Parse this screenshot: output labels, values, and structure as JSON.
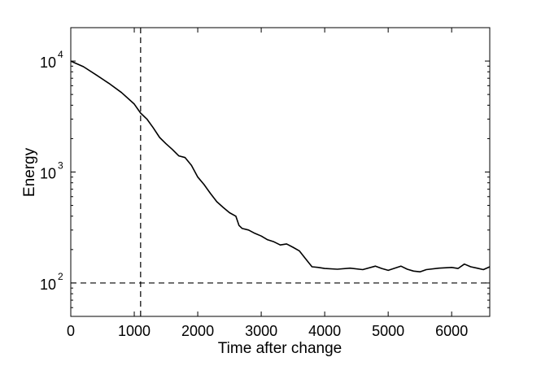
{
  "chart_data": {
    "type": "line",
    "title": "",
    "xlabel": "Time after change",
    "ylabel": "Energy",
    "xlim": [
      0,
      6600
    ],
    "ylim": [
      50,
      20000
    ],
    "yscale": "log",
    "grid": false,
    "x_ticks": [
      0,
      1000,
      2000,
      3000,
      4000,
      5000,
      6000
    ],
    "x_tick_labels": [
      "0",
      "1000",
      "2000",
      "3000",
      "4000",
      "5000",
      "6000"
    ],
    "y_ticks": [
      100,
      1000,
      10000
    ],
    "y_tick_labels": [
      {
        "base": "10",
        "exp": "2"
      },
      {
        "base": "10",
        "exp": "3"
      },
      {
        "base": "10",
        "exp": "4"
      }
    ],
    "reference_lines": [
      {
        "orientation": "vertical",
        "x": 1100,
        "style": "dashed"
      },
      {
        "orientation": "horizontal",
        "y": 100,
        "style": "dashed"
      }
    ],
    "series": [
      {
        "color": "#000000",
        "x": [
          0,
          200,
          400,
          600,
          800,
          1000,
          1100,
          1200,
          1300,
          1400,
          1500,
          1600,
          1700,
          1800,
          1900,
          2000,
          2100,
          2200,
          2300,
          2400,
          2500,
          2600,
          2650,
          2700,
          2800,
          2900,
          3000,
          3100,
          3200,
          3300,
          3400,
          3500,
          3600,
          3700,
          3800,
          3900,
          4000,
          4200,
          4400,
          4600,
          4800,
          4900,
          5000,
          5200,
          5300,
          5400,
          5500,
          5600,
          5800,
          6000,
          6100,
          6200,
          6300,
          6400,
          6500,
          6600
        ],
        "y": [
          10000,
          8900,
          7500,
          6300,
          5200,
          4100,
          3400,
          3000,
          2500,
          2050,
          1800,
          1600,
          1400,
          1350,
          1150,
          900,
          770,
          640,
          540,
          480,
          430,
          400,
          330,
          310,
          300,
          280,
          265,
          245,
          235,
          220,
          225,
          210,
          195,
          165,
          140,
          138,
          135,
          133,
          136,
          132,
          142,
          135,
          130,
          142,
          133,
          128,
          126,
          132,
          136,
          138,
          135,
          148,
          140,
          136,
          132,
          140
        ]
      }
    ]
  }
}
